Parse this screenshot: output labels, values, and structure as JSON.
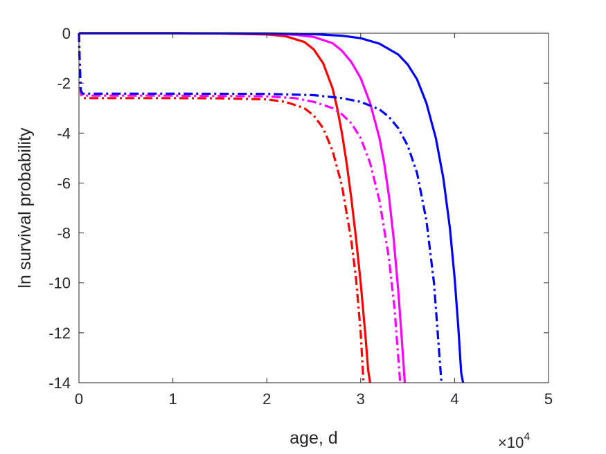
{
  "chart_data": {
    "type": "line",
    "title": "",
    "xlabel": "age, d",
    "ylabel": "ln survival probability",
    "x_multiplier_label": "×10",
    "x_multiplier_exponent": "4",
    "xlim": [
      0,
      50000
    ],
    "ylim": [
      -14,
      0
    ],
    "x_ticks": [
      0,
      10000,
      20000,
      30000,
      40000,
      50000
    ],
    "x_tick_labels": [
      "0",
      "1",
      "2",
      "3",
      "4",
      "5"
    ],
    "y_ticks": [
      0,
      -2,
      -4,
      -6,
      -8,
      -10,
      -12,
      -14
    ],
    "y_tick_labels": [
      "0",
      "-2",
      "-4",
      "-6",
      "-8",
      "-10",
      "-12",
      "-14"
    ],
    "grid": false,
    "series": [
      {
        "color": "#ff0000",
        "style": "solid",
        "x": [
          0,
          10000,
          15000,
          20000,
          22000,
          24000,
          25000,
          26000,
          27000,
          27500,
          28000,
          28500,
          29000,
          29500,
          30000,
          30500,
          30800,
          31000
        ],
        "y": [
          0,
          0,
          -0.01,
          -0.05,
          -0.12,
          -0.35,
          -0.65,
          -1.2,
          -2.2,
          -3.0,
          -4.0,
          -5.2,
          -6.6,
          -8.2,
          -10.0,
          -12.1,
          -13.5,
          -14.0
        ]
      },
      {
        "color": "#ff00ff",
        "style": "solid",
        "x": [
          0,
          10000,
          20000,
          23000,
          25000,
          27000,
          28000,
          29000,
          30000,
          31000,
          32000,
          32500,
          33000,
          33500,
          34000,
          34400,
          34700
        ],
        "y": [
          0,
          0,
          -0.02,
          -0.06,
          -0.15,
          -0.4,
          -0.7,
          -1.15,
          -1.8,
          -2.8,
          -4.2,
          -5.2,
          -6.5,
          -8.2,
          -10.3,
          -12.4,
          -14.0
        ]
      },
      {
        "color": "#0000ff",
        "style": "solid",
        "x": [
          0,
          10000,
          20000,
          25000,
          28000,
          30000,
          32000,
          34000,
          35000,
          36000,
          37000,
          38000,
          38800,
          39500,
          40000,
          40400,
          40700,
          40900
        ],
        "y": [
          0,
          0,
          -0.01,
          -0.04,
          -0.1,
          -0.2,
          -0.42,
          -0.85,
          -1.25,
          -1.85,
          -2.8,
          -4.2,
          -5.8,
          -7.8,
          -9.8,
          -11.8,
          -13.6,
          -14.0
        ]
      },
      {
        "color": "#ff0000",
        "style": "dashdot",
        "x": [
          0,
          80,
          200,
          400,
          5000,
          10000,
          15000,
          20000,
          22000,
          24000,
          25000,
          26000,
          27000,
          28000,
          29000,
          29500,
          30000,
          30300
        ],
        "y": [
          0,
          -1.2,
          -2.4,
          -2.6,
          -2.6,
          -2.6,
          -2.61,
          -2.65,
          -2.75,
          -3.0,
          -3.3,
          -3.8,
          -4.7,
          -6.1,
          -8.3,
          -9.8,
          -12.0,
          -14.0
        ]
      },
      {
        "color": "#ff00ff",
        "style": "dashdot",
        "x": [
          0,
          80,
          200,
          400,
          5000,
          10000,
          20000,
          23000,
          25000,
          27000,
          28000,
          29000,
          30000,
          31000,
          32000,
          33000,
          33600,
          34200
        ],
        "y": [
          0,
          -1.2,
          -2.4,
          -2.5,
          -2.5,
          -2.5,
          -2.53,
          -2.6,
          -2.75,
          -3.0,
          -3.25,
          -3.6,
          -4.2,
          -5.2,
          -6.7,
          -9.0,
          -11.0,
          -14.0
        ]
      },
      {
        "color": "#0000ff",
        "style": "dashdot",
        "x": [
          0,
          80,
          200,
          400,
          5000,
          10000,
          20000,
          25000,
          28000,
          30000,
          32000,
          33000,
          34000,
          35000,
          36000,
          37000,
          37800,
          38600
        ],
        "y": [
          0,
          -1.2,
          -2.3,
          -2.42,
          -2.42,
          -2.42,
          -2.43,
          -2.48,
          -2.6,
          -2.75,
          -3.05,
          -3.35,
          -3.8,
          -4.5,
          -5.6,
          -7.5,
          -10.0,
          -14.0
        ]
      }
    ]
  }
}
